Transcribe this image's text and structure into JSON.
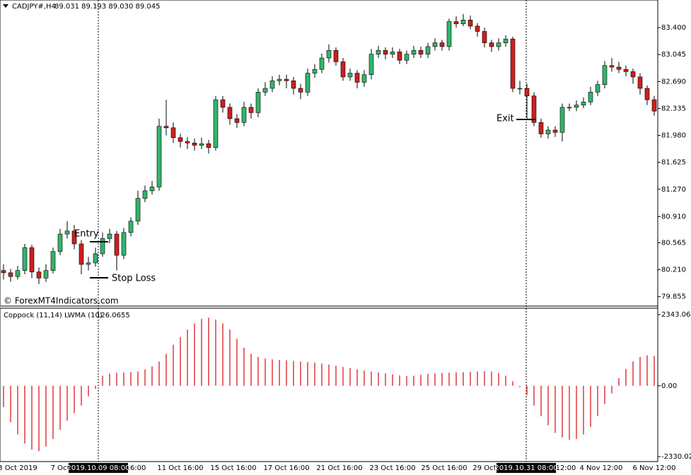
{
  "chart_data": [
    {
      "type": "candlestick",
      "title": "CADJPY#,H4",
      "ohlc_label": "89.031 89.193 89.030 89.045",
      "watermark": "© ForexMT4Indicators.com",
      "annotations": [
        "Entry",
        "Stop Loss",
        "Exit"
      ],
      "time_labels": [
        "3 Oct 2019",
        "7 Oct",
        "16:00",
        "11 Oct 16:00",
        "15 Oct 16:00",
        "17 Oct 16:00",
        "21 Oct 16:00",
        "23 Oct 16:00",
        "25 Oct 16:00",
        "29 Oct",
        "12:00",
        "4 Nov 12:00",
        "6 Nov 12:00"
      ],
      "cursor_labels": [
        "2019.10.09 08:00",
        "2019.10.31 08:00"
      ],
      "up_color": "#32b46c",
      "down_color": "#cc1f1f",
      "ylim": [
        79.74,
        83.755
      ],
      "yticks": [
        {
          "value": 83.4,
          "label": "83.400"
        },
        83.045,
        {
          "value": 82.69,
          "label": "82.690"
        },
        82.335,
        {
          "value": 81.98,
          "label": "81.980"
        },
        81.625,
        {
          "value": 81.27,
          "label": "81.270"
        },
        {
          "value": 80.91,
          "label": "80.910"
        },
        80.565,
        {
          "value": 80.21,
          "label": "80.210"
        },
        79.855
      ],
      "open": [
        80.2,
        80.17,
        80.12,
        80.2,
        80.5,
        80.18,
        80.1,
        80.2,
        80.45,
        80.68,
        80.72,
        80.55,
        80.28,
        80.3,
        80.42,
        80.62,
        80.68,
        80.4,
        80.7,
        80.85,
        81.15,
        81.25,
        81.3,
        82.1,
        82.08,
        81.95,
        81.9,
        81.88,
        81.85,
        81.87,
        81.82,
        82.45,
        82.35,
        82.2,
        82.15,
        82.35,
        82.28,
        82.55,
        82.6,
        82.7,
        82.72,
        82.7,
        82.6,
        82.55,
        82.8,
        82.85,
        83.0,
        83.1,
        82.95,
        82.75,
        82.8,
        82.68,
        82.78,
        83.05,
        83.1,
        83.05,
        83.08,
        82.97,
        83.05,
        83.1,
        83.05,
        83.15,
        83.2,
        83.15,
        83.48,
        83.45,
        83.5,
        83.42,
        83.35,
        83.2,
        83.15,
        83.2,
        83.25,
        82.6,
        82.6,
        82.5,
        82.15,
        82.0,
        82.05,
        82.02,
        82.35,
        82.35,
        82.38,
        82.42,
        82.55,
        82.65,
        82.9,
        82.88,
        82.85,
        82.82,
        82.75,
        82.6,
        82.45
      ],
      "high": [
        80.28,
        80.22,
        80.26,
        80.55,
        80.54,
        80.24,
        80.28,
        80.5,
        80.75,
        80.85,
        80.8,
        80.6,
        80.38,
        80.5,
        80.7,
        80.75,
        80.72,
        80.76,
        80.9,
        81.25,
        81.32,
        81.38,
        82.2,
        82.45,
        82.15,
        82.0,
        81.96,
        81.94,
        81.95,
        81.92,
        82.5,
        82.5,
        82.4,
        82.26,
        82.42,
        82.4,
        82.6,
        82.68,
        82.76,
        82.78,
        82.78,
        82.75,
        82.66,
        82.86,
        82.92,
        83.06,
        83.18,
        83.14,
        83.0,
        82.86,
        82.84,
        82.84,
        83.12,
        83.16,
        83.14,
        83.14,
        83.12,
        83.1,
        83.16,
        83.15,
        83.2,
        83.26,
        83.24,
        83.52,
        83.55,
        83.58,
        83.56,
        83.46,
        83.4,
        83.24,
        83.26,
        83.3,
        83.28,
        82.7,
        82.66,
        82.55,
        82.2,
        82.1,
        82.1,
        82.4,
        82.4,
        82.44,
        82.48,
        82.62,
        82.7,
        82.96,
        83.0,
        82.95,
        82.9,
        82.86,
        82.8,
        82.64,
        82.5
      ],
      "low": [
        80.08,
        80.05,
        80.08,
        80.15,
        80.1,
        80.02,
        80.05,
        80.16,
        80.4,
        80.62,
        80.48,
        80.15,
        80.2,
        80.25,
        80.38,
        80.56,
        80.2,
        80.35,
        80.65,
        80.8,
        81.1,
        81.2,
        81.25,
        81.98,
        81.88,
        81.82,
        81.8,
        81.78,
        81.8,
        81.74,
        81.78,
        82.28,
        82.12,
        82.08,
        82.1,
        82.2,
        82.22,
        82.5,
        82.55,
        82.64,
        82.6,
        82.52,
        82.46,
        82.5,
        82.74,
        82.8,
        82.94,
        82.9,
        82.7,
        82.7,
        82.6,
        82.62,
        82.72,
        83.0,
        82.98,
        83.0,
        82.92,
        82.92,
        83.0,
        83.0,
        83.0,
        83.1,
        83.1,
        83.1,
        83.4,
        83.42,
        83.38,
        83.28,
        83.14,
        83.08,
        83.1,
        83.15,
        82.55,
        82.52,
        82.2,
        82.1,
        81.95,
        81.94,
        81.96,
        81.9,
        82.3,
        82.3,
        82.34,
        82.38,
        82.5,
        82.6,
        82.82,
        82.8,
        82.76,
        82.66,
        82.52,
        82.38,
        82.24
      ],
      "close": [
        80.17,
        80.12,
        80.2,
        80.5,
        80.18,
        80.1,
        80.2,
        80.45,
        80.68,
        80.72,
        80.55,
        80.28,
        80.3,
        80.42,
        80.62,
        80.68,
        80.4,
        80.7,
        80.85,
        81.15,
        81.25,
        81.3,
        82.1,
        82.08,
        81.95,
        81.9,
        81.88,
        81.85,
        81.87,
        81.82,
        82.45,
        82.35,
        82.2,
        82.15,
        82.35,
        82.28,
        82.55,
        82.6,
        82.7,
        82.72,
        82.7,
        82.6,
        82.55,
        82.8,
        82.85,
        83.0,
        83.1,
        82.95,
        82.75,
        82.8,
        82.68,
        82.78,
        83.05,
        83.1,
        83.05,
        83.08,
        82.97,
        83.05,
        83.1,
        83.05,
        83.15,
        83.2,
        83.15,
        83.48,
        83.45,
        83.5,
        83.42,
        83.35,
        83.2,
        83.15,
        83.2,
        83.25,
        82.6,
        82.6,
        82.5,
        82.15,
        82.0,
        82.05,
        82.02,
        82.35,
        82.35,
        82.38,
        82.42,
        82.55,
        82.65,
        82.9,
        82.88,
        82.85,
        82.82,
        82.75,
        82.6,
        82.45,
        82.3
      ]
    },
    {
      "type": "bar",
      "title": "Coppock (11,14) LWMA (10)",
      "current_value": 126.0655,
      "color": "#e0393e",
      "ylim": [
        -2470,
        2530
      ],
      "yticks": [
        2343.068,
        {
          "value": 0,
          "label": "0.00"
        },
        {
          "value": -2330.02,
          "label": "-2330.020"
        }
      ],
      "values": [
        -700,
        -1200,
        -1600,
        -1900,
        -2100,
        -2150,
        -2000,
        -1750,
        -1450,
        -1150,
        -900,
        -650,
        -350,
        -100,
        330,
        400,
        430,
        440,
        450,
        470,
        540,
        640,
        800,
        1050,
        1350,
        1600,
        1850,
        2050,
        2200,
        2240,
        2180,
        2050,
        1850,
        1550,
        1250,
        1050,
        950,
        900,
        870,
        850,
        840,
        820,
        800,
        780,
        760,
        730,
        700,
        660,
        620,
        580,
        540,
        500,
        470,
        440,
        410,
        380,
        340,
        320,
        330,
        360,
        390,
        410,
        420,
        430,
        440,
        450,
        460,
        470,
        480,
        470,
        420,
        330,
        150,
        -50,
        -300,
        -650,
        -1000,
        -1300,
        -1550,
        -1700,
        -1780,
        -1750,
        -1600,
        -1350,
        -1000,
        -600,
        -250,
        250,
        550,
        800,
        950,
        1000,
        980
      ]
    }
  ]
}
